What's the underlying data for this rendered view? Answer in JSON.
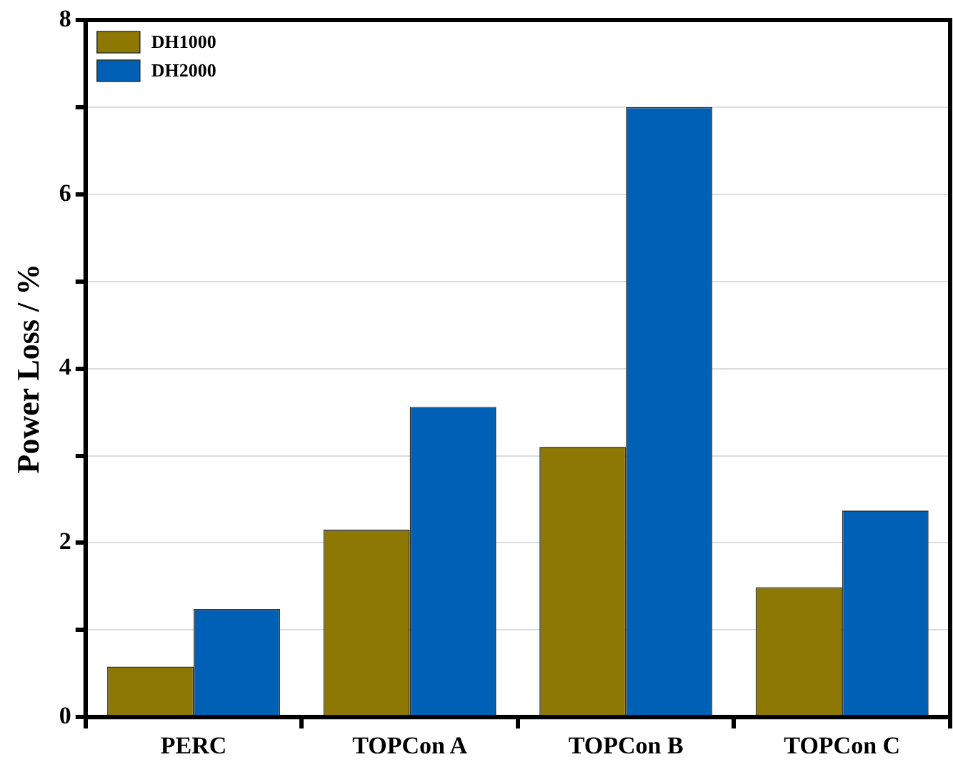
{
  "chart_data": {
    "type": "bar",
    "ylabel": "Power Loss / %",
    "categories": [
      "PERC",
      "TOPCon A",
      "TOPCon B",
      "TOPCon C"
    ],
    "series": [
      {
        "name": "DH1000",
        "color": "#8c7803",
        "values": [
          0.58,
          2.15,
          3.1,
          1.49
        ]
      },
      {
        "name": "DH2000",
        "color": "#0060b6",
        "values": [
          1.24,
          3.56,
          7.0,
          2.37
        ]
      }
    ],
    "ylim": [
      0,
      8
    ],
    "yticks": [
      0,
      {
        "value": 1,
        "label": null
      },
      2,
      {
        "value": 3,
        "label": null
      },
      4,
      {
        "value": 5,
        "label": null
      },
      6,
      {
        "value": 7,
        "label": null
      },
      8
    ],
    "grid": "y",
    "legend": "top left"
  }
}
